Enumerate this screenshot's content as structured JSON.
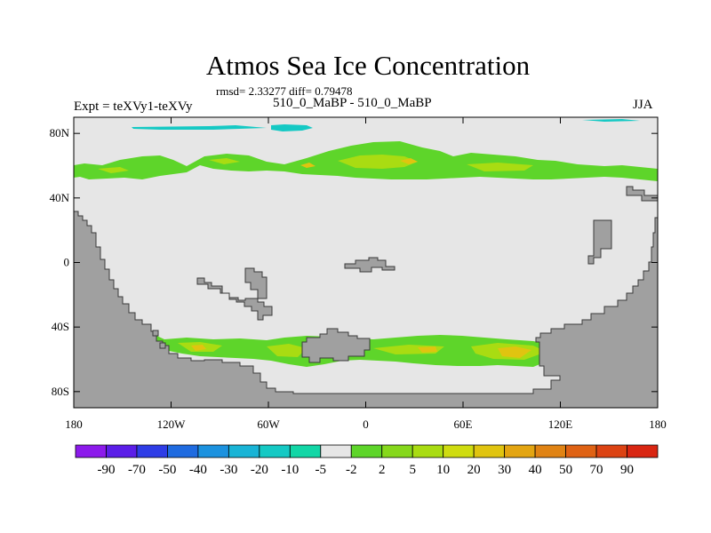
{
  "chart_data": {
    "type": "heatmap",
    "title": "Atmos Sea Ice Concentration",
    "stats_text": "rmsd= 2.33277  diff= 0.79478",
    "left_label": "Expt = teXVy1-teXVy",
    "center_label": "510_0_MaBP - 510_0_MaBP",
    "right_label": "JJA",
    "x_ticks": [
      "180",
      "120W",
      "60W",
      "0",
      "60E",
      "120E",
      "180"
    ],
    "y_ticks": [
      "80N",
      "40N",
      "0",
      "40S",
      "80S"
    ],
    "xlim": [
      -180,
      180
    ],
    "ylim": [
      -90,
      90
    ],
    "colorbar": {
      "labels": [
        "-90",
        "-70",
        "-50",
        "-40",
        "-30",
        "-20",
        "-10",
        "-5",
        "-2",
        "2",
        "5",
        "10",
        "20",
        "30",
        "40",
        "50",
        "70",
        "90"
      ],
      "colors": [
        "#8c1aeb",
        "#5b1ee8",
        "#2e3de6",
        "#1f6be0",
        "#1c92df",
        "#19b4d6",
        "#15c9c4",
        "#12d6a6",
        "#e6e6e6",
        "#5ed52a",
        "#86d81c",
        "#a9dc12",
        "#cfdc10",
        "#e0c410",
        "#e3a512",
        "#e08314",
        "#df6214",
        "#dc4313",
        "#d92612"
      ]
    },
    "colors": {
      "background": "#e6e6e6",
      "land": "#a0a0a0",
      "positive_low": "#5ed52a",
      "positive_mid": "#a9dc12",
      "positive_high": "#e0c410",
      "negative": "#15c9c4"
    }
  }
}
